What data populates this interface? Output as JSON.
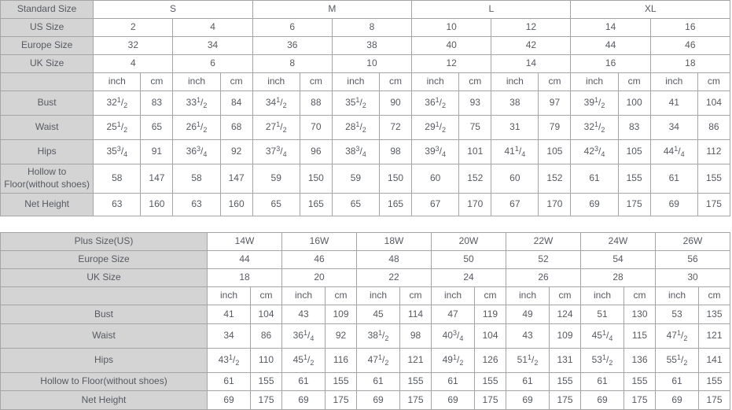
{
  "colors": {
    "header_bg": "#d4d4d5",
    "cell_bg": "#ffffff",
    "border": "#a5a5a5",
    "text": "#565a60"
  },
  "chart_data": [
    {
      "type": "table",
      "name": "standard-size-chart",
      "group_rows": [
        {
          "label": "Standard Size",
          "span": 4,
          "values": [
            "S",
            "M",
            "L",
            "XL"
          ]
        },
        {
          "label": "US Size",
          "span": 2,
          "values": [
            "2",
            "4",
            "6",
            "8",
            "10",
            "12",
            "14",
            "16"
          ]
        },
        {
          "label": "Europe Size",
          "span": 2,
          "values": [
            "32",
            "34",
            "36",
            "38",
            "40",
            "42",
            "44",
            "46"
          ]
        },
        {
          "label": "UK Size",
          "span": 2,
          "values": [
            "4",
            "6",
            "8",
            "10",
            "12",
            "14",
            "16",
            "18"
          ]
        }
      ],
      "unit_row": {
        "label": "",
        "units": [
          "inch",
          "cm"
        ],
        "pairs": 8
      },
      "measure_rows": [
        {
          "label": "Bust",
          "values": [
            "32 1/2",
            "83",
            "33 1/2",
            "84",
            "34 1/2",
            "88",
            "35 1/2",
            "90",
            "36 1/2",
            "93",
            "38",
            "97",
            "39 1/2",
            "100",
            "41",
            "104"
          ]
        },
        {
          "label": "Waist",
          "values": [
            "25 1/2",
            "65",
            "26 1/2",
            "68",
            "27 1/2",
            "70",
            "28 1/2",
            "72",
            "29 1/2",
            "75",
            "31",
            "79",
            "32 1/2",
            "83",
            "34",
            "86"
          ]
        },
        {
          "label": "Hips",
          "values": [
            "35 3/4",
            "91",
            "36 3/4",
            "92",
            "37 3/4",
            "96",
            "38 3/4",
            "98",
            "39 3/4",
            "101",
            "41 1/4",
            "105",
            "42 3/4",
            "105",
            "44 1/4",
            "112"
          ]
        },
        {
          "label": "Hollow to Floor(without shoes)",
          "values": [
            "58",
            "147",
            "58",
            "147",
            "59",
            "150",
            "59",
            "150",
            "60",
            "152",
            "60",
            "152",
            "61",
            "155",
            "61",
            "155"
          ]
        },
        {
          "label": "Net Height",
          "values": [
            "63",
            "160",
            "63",
            "160",
            "65",
            "165",
            "65",
            "165",
            "67",
            "170",
            "67",
            "170",
            "69",
            "175",
            "69",
            "175"
          ]
        }
      ]
    },
    {
      "type": "table",
      "name": "plus-size-chart",
      "group_rows": [
        {
          "label": "Plus Size(US)",
          "span": 2,
          "values": [
            "14W",
            "16W",
            "18W",
            "20W",
            "22W",
            "24W",
            "26W"
          ]
        },
        {
          "label": "Europe Size",
          "span": 2,
          "values": [
            "44",
            "46",
            "48",
            "50",
            "52",
            "54",
            "56"
          ]
        },
        {
          "label": "UK Size",
          "span": 2,
          "values": [
            "18",
            "20",
            "22",
            "24",
            "26",
            "28",
            "30"
          ]
        }
      ],
      "unit_row": {
        "label": "",
        "units": [
          "inch",
          "cm"
        ],
        "pairs": 7
      },
      "measure_rows": [
        {
          "label": "Bust",
          "values": [
            "41",
            "104",
            "43",
            "109",
            "45",
            "114",
            "47",
            "119",
            "49",
            "124",
            "51",
            "130",
            "53",
            "135"
          ]
        },
        {
          "label": "Waist",
          "values": [
            "34",
            "86",
            "36 1/4",
            "92",
            "38 1/2",
            "98",
            "40 3/4",
            "104",
            "43",
            "109",
            "45 1/4",
            "115",
            "47 1/2",
            "121"
          ]
        },
        {
          "label": "Hips",
          "values": [
            "43 1/2",
            "110",
            "45 1/2",
            "116",
            "47 1/2",
            "121",
            "49 1/2",
            "126",
            "51 1/2",
            "131",
            "53 1/2",
            "136",
            "55 1/2",
            "141"
          ]
        },
        {
          "label": "Hollow to Floor(without shoes)",
          "values": [
            "61",
            "155",
            "61",
            "155",
            "61",
            "155",
            "61",
            "155",
            "61",
            "155",
            "61",
            "155",
            "61",
            "155"
          ]
        },
        {
          "label": "Net Height",
          "values": [
            "69",
            "175",
            "69",
            "175",
            "69",
            "175",
            "69",
            "175",
            "69",
            "175",
            "69",
            "175",
            "69",
            "175"
          ]
        }
      ]
    }
  ]
}
